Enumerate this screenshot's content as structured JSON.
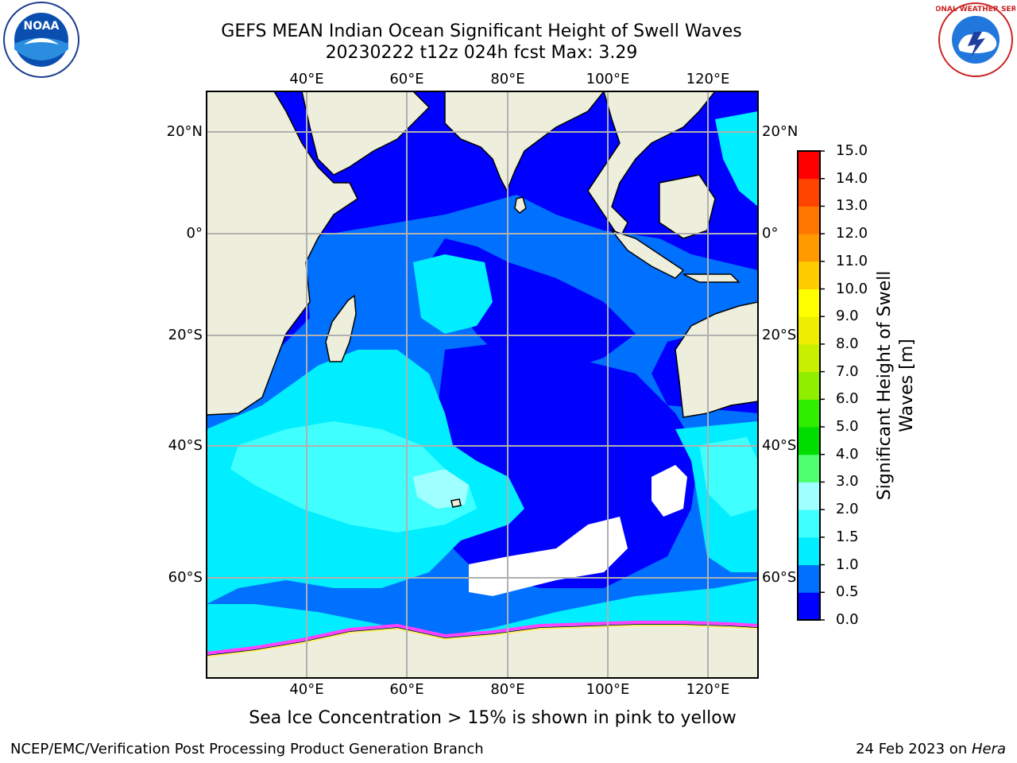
{
  "title": {
    "line1": "GEFS MEAN Indian Ocean Significant Height of Swell Waves",
    "line2": "20230222 t12z 024h fcst   Max: 3.29"
  },
  "map": {
    "lon_ticks": [
      "40°E",
      "60°E",
      "80°E",
      "100°E",
      "120°E"
    ],
    "lat_ticks": [
      "20°N",
      "0°",
      "20°S",
      "40°S",
      "60°S"
    ],
    "colors": {
      "land": "#eeeedd",
      "level_0_0_5": "#0000ff",
      "level_0_5_1_0": "#0070ff",
      "level_1_0_1_5": "#00eeff",
      "level_1_5_2_0": "#40ffff",
      "level_2_0_3_0": "#a0ffff",
      "ice": "#ff40ff"
    }
  },
  "colorbar": {
    "title_line1": "Significant Height of Swell",
    "title_line2": "Waves [m]",
    "ticks": [
      "0.0",
      "0.5",
      "1.0",
      "1.5",
      "2.0",
      "3.0",
      "4.0",
      "5.0",
      "6.0",
      "7.0",
      "8.0",
      "9.0",
      "10.0",
      "11.0",
      "12.0",
      "13.0",
      "14.0",
      "15.0"
    ],
    "colors": [
      "#0000ff",
      "#0070ff",
      "#00eeff",
      "#40ffff",
      "#a0ffff",
      "#50ff70",
      "#00dd00",
      "#30ee00",
      "#90ee00",
      "#c8ee00",
      "#eeee00",
      "#ffff00",
      "#ffcc00",
      "#ff9900",
      "#ff7700",
      "#ff4400",
      "#ff0000"
    ]
  },
  "note": "Sea Ice Concentration > 15% is shown in pink to yellow",
  "footer": {
    "left": "NCEP/EMC/Verification Post Processing Product Generation Branch",
    "right_date": "24 Feb 2023 on ",
    "right_machine": "Hera"
  },
  "logos": {
    "left_text": "NOAA",
    "right_text": "NATIONAL WEATHER SERVICE"
  }
}
